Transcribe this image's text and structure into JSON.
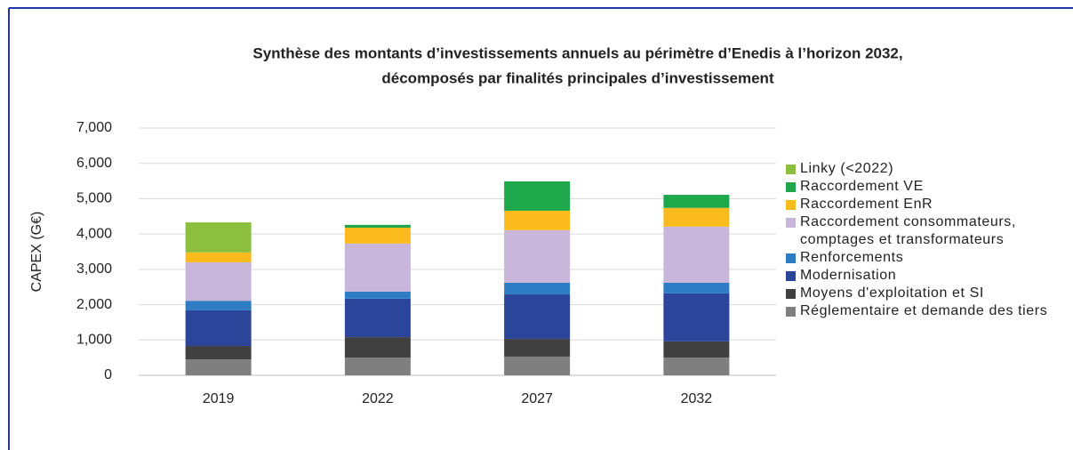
{
  "chart_data": {
    "type": "stacked_bar",
    "title": "Synthèse des montants d’investissements annuels au périmètre d’Enedis à l’horizon 2032,",
    "subtitle": "décomposés par finalités principales d’investissement",
    "y_label": "CAPEX (G€)",
    "categories": [
      "2019",
      "2022",
      "2027",
      "2032"
    ],
    "series": [
      {
        "name": "Réglementaire et demande des tiers",
        "color": "#7f7f7f",
        "values": [
          450,
          500,
          530,
          500
        ]
      },
      {
        "name": "Moyens d'exploitation et SI",
        "color": "#404040",
        "values": [
          380,
          580,
          500,
          460
        ]
      },
      {
        "name": "Modernisation",
        "color": "#2a4599",
        "values": [
          1010,
          1090,
          1260,
          1360
        ]
      },
      {
        "name": "Renforcements",
        "color": "#2e7cc3",
        "values": [
          270,
          200,
          330,
          300
        ]
      },
      {
        "name": "Raccordement consommateurs, comptages et transformateurs",
        "color": "#c7b5da",
        "values": [
          1090,
          1360,
          1490,
          1590
        ]
      },
      {
        "name": "Raccordement EnR",
        "color": "#fbbb1c",
        "values": [
          280,
          450,
          550,
          530
        ]
      },
      {
        "name": "Raccordement VE",
        "color": "#1fa84b",
        "values": [
          0,
          80,
          830,
          370
        ]
      },
      {
        "name": "Linky (<2022)",
        "color": "#8dbf3f",
        "values": [
          850,
          0,
          0,
          0
        ]
      }
    ],
    "ylim": [
      0,
      7000
    ],
    "yticks": [
      0,
      {
        "value": 1000,
        "label": "1,000"
      },
      {
        "value": 2000,
        "label": "2,000"
      },
      {
        "value": 3000,
        "label": "3,000"
      },
      {
        "value": 4000,
        "label": "4,000"
      },
      {
        "value": 5000,
        "label": "5,000"
      },
      {
        "value": 6000,
        "label": "6,000"
      },
      {
        "value": 7000,
        "label": "7,000"
      }
    ],
    "grid": true
  }
}
